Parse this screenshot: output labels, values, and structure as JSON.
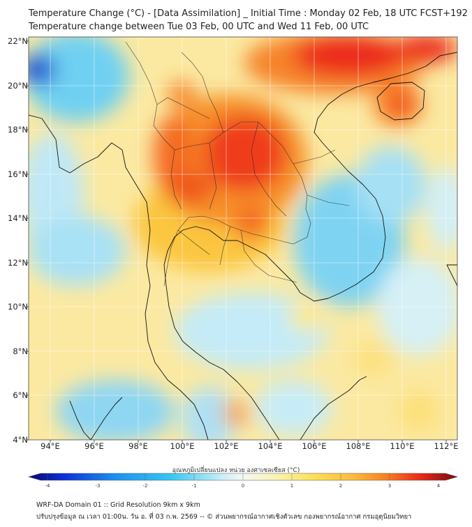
{
  "header": {
    "title_line1": "Temperature Change (°C) - [Data Assimilation] _ Initial Time : Monday 02 Feb, 18 UTC FCST+192",
    "title_line2": "Temperature change between Tue 03 Feb, 00 UTC and Wed 11 Feb, 00 UTC"
  },
  "map": {
    "lat_labels": [
      "22°N",
      "20°N",
      "18°N",
      "16°N",
      "14°N",
      "12°N",
      "10°N",
      "8°N",
      "6°N",
      "4°N"
    ],
    "lon_labels": [
      "94°E",
      "96°E",
      "98°E",
      "100°E",
      "102°E",
      "104°E",
      "106°E",
      "108°E",
      "110°E",
      "112°E"
    ],
    "lat_range": [
      4,
      22.3
    ],
    "lon_range": [
      93,
      112.5
    ]
  },
  "colorbar": {
    "title": "อุณหภูมิเปลี่ยนแปลง หน่วย องศาเซลเซียส (°C)",
    "ticks": [
      "-4",
      "-3",
      "-2",
      "-1",
      "0",
      "1",
      "2",
      "3",
      "4"
    ],
    "min": -4,
    "max": 4,
    "colors": [
      "#08086b",
      "#0a2fd6",
      "#1d8ff0",
      "#35c6f2",
      "#a8e6f7",
      "#f2f7f8",
      "#fbf5bd",
      "#fbe25a",
      "#fcb93a",
      "#f77a22",
      "#ec2a1b",
      "#b40c10",
      "#7a0a0c"
    ]
  },
  "footer": {
    "line1": "WRF-DA Domain 01 :: Grid Resolution 9km x 9km",
    "line2": "ปรับปรุงข้อมูล ณ เวลา 01:00น. วัน อ. ที่ 03 ก.พ. 2569 -- © ส่วนพยากรณ์อากาศเชิงตัวเลข กองพยากรณ์อากาศ กรมอุตุนิยมวิทยา"
  }
}
